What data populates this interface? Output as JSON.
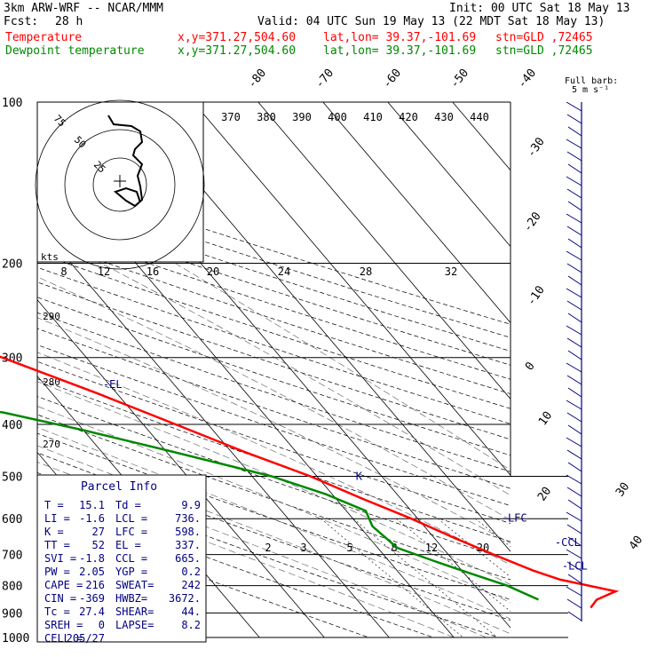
{
  "header": {
    "model": "3km ARW-WRF -- NCAR/MMM",
    "init": "Init: 00 UTC Sat 18 May 13",
    "fcst_label": "Fcst:",
    "fcst_value": "28 h",
    "valid": "Valid: 04 UTC Sun 19 May 13 (22 MDT Sat 18 May 13)",
    "temp_label": "Temperature",
    "dew_label": "Dewpoint temperature",
    "loc_xy": "x,y=371.27,504.60",
    "loc_latlon": "lat,lon= 39.37,-101.69",
    "loc_stn": "stn=GLD ,72465",
    "full_barb": "Full barb:",
    "full_barb_units": "5 m s⁻¹"
  },
  "colors": {
    "temperature": "#ff0000",
    "dewpoint": "#008800",
    "wind": "#000080"
  },
  "chart_data": {
    "type": "skew-t",
    "pressure_levels": [
      100,
      200,
      300,
      400,
      500,
      600,
      700,
      800,
      900,
      1000
    ],
    "pressure_labels": [
      "100",
      "200",
      "300",
      "400",
      "500",
      "600",
      "700",
      "800",
      "900",
      "1000"
    ],
    "isotherm_labels_top": [
      "-80",
      "-70",
      "-60",
      "-50",
      "-40"
    ],
    "isotherm_labels_right": [
      "-30",
      "-20",
      "-10",
      "0",
      "10",
      "20",
      "30",
      "40"
    ],
    "theta_labels": [
      "370",
      "380",
      "390",
      "400",
      "410",
      "420",
      "430",
      "440"
    ],
    "theta_labels_left": [
      "290",
      "280",
      "270"
    ],
    "mixing_ratio_labels": [
      "2",
      "3",
      "5",
      "8",
      "12",
      "20"
    ],
    "temperature_profile": [
      {
        "p": 100,
        "t": -57
      },
      {
        "p": 125,
        "t": -60
      },
      {
        "p": 150,
        "t": -65
      },
      {
        "p": 175,
        "t": -68
      },
      {
        "p": 200,
        "t": -66
      },
      {
        "p": 250,
        "t": -56
      },
      {
        "p": 300,
        "t": -43
      },
      {
        "p": 350,
        "t": -33
      },
      {
        "p": 400,
        "t": -25
      },
      {
        "p": 450,
        "t": -18
      },
      {
        "p": 500,
        "t": -11
      },
      {
        "p": 550,
        "t": -6
      },
      {
        "p": 600,
        "t": -1
      },
      {
        "p": 650,
        "t": 3
      },
      {
        "p": 700,
        "t": 7
      },
      {
        "p": 750,
        "t": 11
      },
      {
        "p": 780,
        "t": 14
      },
      {
        "p": 820,
        "t": 21
      },
      {
        "p": 850,
        "t": 17
      },
      {
        "p": 880,
        "t": 15
      }
    ],
    "dewpoint_profile": [
      {
        "p": 100,
        "t": -80
      },
      {
        "p": 125,
        "t": -85
      },
      {
        "p": 150,
        "t": -89
      },
      {
        "p": 175,
        "t": -86
      },
      {
        "p": 200,
        "t": -76
      },
      {
        "p": 240,
        "t": -78
      },
      {
        "p": 280,
        "t": -86
      },
      {
        "p": 330,
        "t": -86
      },
      {
        "p": 380,
        "t": -50
      },
      {
        "p": 410,
        "t": -40
      },
      {
        "p": 450,
        "t": -29
      },
      {
        "p": 500,
        "t": -17
      },
      {
        "p": 540,
        "t": -11
      },
      {
        "p": 580,
        "t": -7
      },
      {
        "p": 620,
        "t": -8
      },
      {
        "p": 680,
        "t": -7
      },
      {
        "p": 720,
        "t": -3
      },
      {
        "p": 760,
        "t": 1
      },
      {
        "p": 800,
        "t": 5
      },
      {
        "p": 850,
        "t": 8
      }
    ],
    "markers": [
      {
        "label": "-EL",
        "p": 337,
        "t": -31
      },
      {
        "label": "K",
        "p": 500,
        "t": -4
      },
      {
        "label": "-LFC",
        "p": 598,
        "t": 13
      },
      {
        "label": "-CCL",
        "p": 665,
        "t": 18
      },
      {
        "label": "-LCL",
        "p": 736,
        "t": 16
      }
    ],
    "hodograph": {
      "units_label": "kts",
      "rings": [
        "25",
        "50",
        "75"
      ],
      "speed_labels": [
        "8",
        "12",
        "16",
        "20",
        "24",
        "28",
        "32"
      ]
    },
    "wind_barbs_note": "Wind profile shown along right edge",
    "parcel_info": {
      "title": "Parcel Info",
      "rows": [
        [
          "T  =",
          "15.1",
          "Td =",
          "9.9"
        ],
        [
          "LI =",
          "-1.6",
          "LCL =",
          "736."
        ],
        [
          "K  =",
          "27",
          "LFC =",
          "598."
        ],
        [
          "TT =",
          "52",
          "EL  =",
          "337."
        ],
        [
          "SVI =",
          "-1.8",
          "CCL =",
          "665."
        ],
        [
          "PW =",
          "2.05",
          "YGP =",
          "0.2"
        ],
        [
          "CAPE =",
          "216",
          "SWEAT=",
          "242"
        ],
        [
          "CIN  =",
          "-369",
          "HWBZ=",
          "3672."
        ],
        [
          "Tc  =",
          "27.4",
          "SHEAR=",
          "44."
        ],
        [
          "SREH =",
          "0",
          "LAPSE=",
          "8.2"
        ],
        [
          "CELL =",
          "205/27",
          "",
          ""
        ]
      ]
    }
  }
}
